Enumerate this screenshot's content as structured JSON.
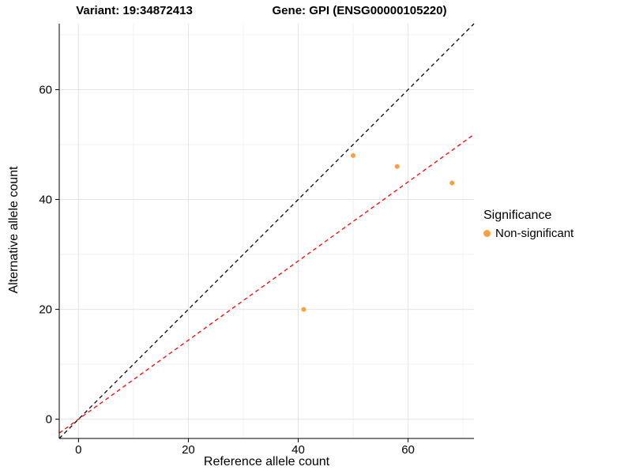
{
  "chart_data": {
    "type": "scatter",
    "title_left": "Variant: 19:34872413",
    "title_right": "Gene: GPI (ENSG00000105220)",
    "xlabel": "Reference allele count",
    "ylabel": "Alternative allele count",
    "xlim": [
      -3.5,
      72
    ],
    "ylim": [
      -3.5,
      72
    ],
    "xticks": [
      0,
      20,
      40,
      60
    ],
    "yticks": [
      0,
      20,
      40,
      60
    ],
    "minor_ticks": [
      10,
      30,
      50,
      70
    ],
    "grid": true,
    "points": [
      {
        "x": 50,
        "y": 48,
        "series": "Non-significant"
      },
      {
        "x": 58,
        "y": 46,
        "series": "Non-significant"
      },
      {
        "x": 68,
        "y": 43,
        "series": "Non-significant"
      },
      {
        "x": 41,
        "y": 20,
        "series": "Non-significant"
      }
    ],
    "lines": [
      {
        "name": "identity-line",
        "slope": 1,
        "intercept": 0,
        "color": "#000000",
        "style": "dashed"
      },
      {
        "name": "ratio-line",
        "slope": 0.72,
        "intercept": 0,
        "color": "#ff0000",
        "style": "dashed"
      }
    ],
    "legend": {
      "title": "Significance",
      "position": "right",
      "entries": [
        {
          "label": "Non-significant",
          "color": "#F9A03F"
        }
      ]
    },
    "colors": {
      "point": "#F9A03F",
      "grid_major": "#E4E4E4",
      "grid_minor": "#F2F2F2",
      "axis": "#000000",
      "tick_label": "#000000"
    }
  }
}
